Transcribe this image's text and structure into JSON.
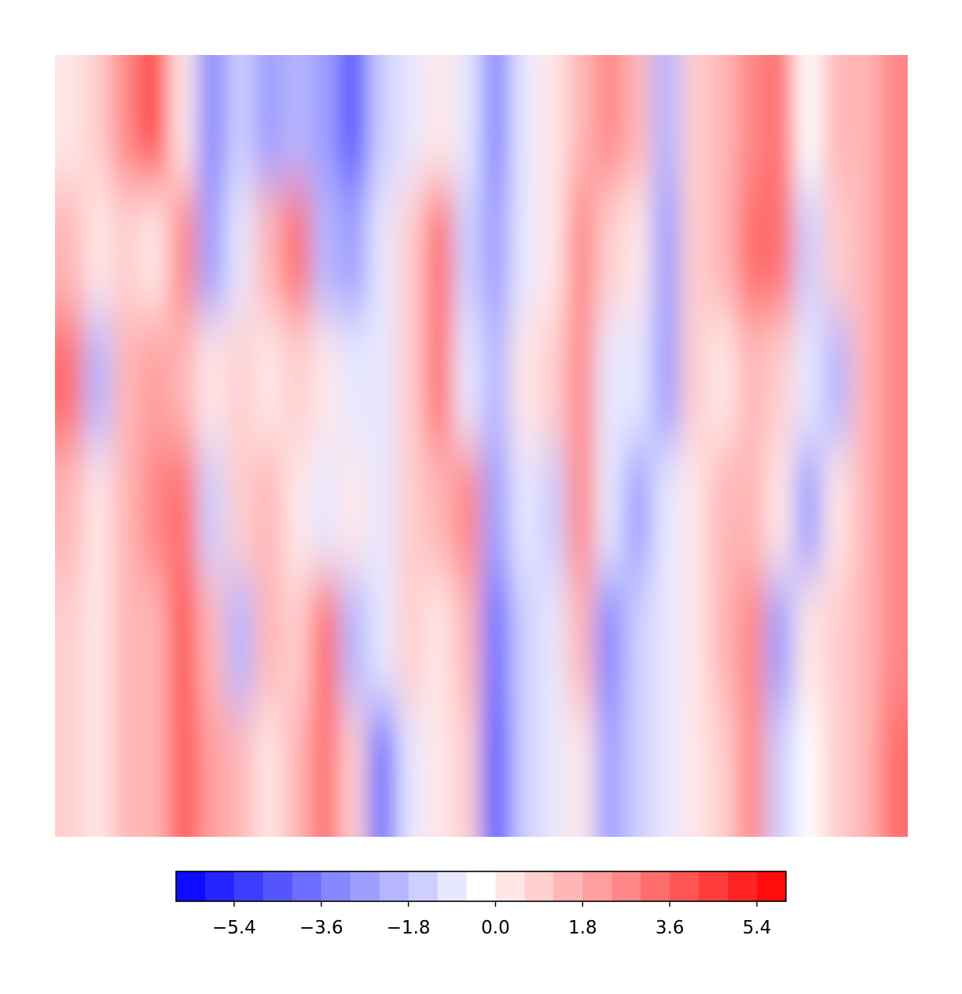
{
  "chart_data": {
    "type": "contour",
    "z": [
      [
        0.5,
        0.6,
        2.5,
        4.5,
        0.3,
        -3.5,
        -1.5,
        -2.5,
        -2,
        -3,
        -4.5,
        -1.5,
        -1.2,
        0,
        -1.2,
        -3.5,
        -0.8,
        0.2,
        1.2,
        2.5,
        1.5,
        -2,
        0.8,
        1.5,
        2.5,
        3,
        -0.3,
        1.2,
        1.5,
        2.5
      ],
      [
        1.5,
        0.3,
        1,
        0.2,
        2.5,
        -3,
        -1,
        1.2,
        3,
        -2,
        -3,
        -1,
        0.8,
        3,
        -1.5,
        -2.5,
        -1,
        0.2,
        2.5,
        1,
        0.2,
        -2.5,
        0.8,
        1.5,
        3,
        3.5,
        -1.5,
        1,
        1.5,
        2.5
      ],
      [
        3,
        -2,
        1.5,
        2,
        1.2,
        0,
        0.6,
        0,
        1,
        0,
        -1,
        -0.8,
        0.6,
        3,
        -1,
        -2,
        0,
        1,
        2.5,
        -1.2,
        -1,
        -2.5,
        0.8,
        0.2,
        1.2,
        0.8,
        -0.8,
        -2,
        1.5,
        2.5
      ],
      [
        1.5,
        0.2,
        1.5,
        2.5,
        3.5,
        -1.5,
        1,
        1.2,
        0,
        -0.8,
        0,
        -0.8,
        1,
        1.2,
        2.5,
        -2.5,
        -1.2,
        -1.5,
        2.5,
        -1,
        -2.5,
        -1.2,
        0.2,
        1.2,
        1.5,
        0,
        -2.5,
        0,
        1.5,
        2.5
      ],
      [
        1,
        0.2,
        1.5,
        1.5,
        4,
        1.5,
        -2,
        1.5,
        1,
        3,
        -2,
        -0.8,
        0.6,
        0,
        1.5,
        -4,
        -1.5,
        -1,
        1.2,
        -3.5,
        -1.5,
        -1,
        0,
        1.2,
        2.5,
        -2.5,
        0,
        1,
        1.2,
        2.5
      ],
      [
        1,
        0,
        1.2,
        1.5,
        4,
        2,
        1.5,
        0,
        1.5,
        3.5,
        1,
        -4,
        -0.8,
        0.2,
        0.6,
        -4.5,
        -1.5,
        -1,
        0.2,
        -2.5,
        -1.5,
        -1,
        0,
        1,
        2.5,
        -1.5,
        -0.5,
        1,
        1.5,
        3
      ]
    ],
    "levels": [
      -6.6,
      -6.0,
      -5.4,
      -4.8,
      -4.2,
      -3.6,
      -3.0,
      -2.4,
      -1.8,
      -1.2,
      -0.6,
      0.0,
      0.6,
      1.2,
      1.8,
      2.4,
      3.0,
      3.6,
      4.2,
      4.8,
      5.4,
      6.0
    ],
    "cmap": [
      "#0000ff",
      "#ffffff",
      "#ff0000"
    ],
    "colorbar": {
      "lim": [
        -6.6,
        6.0
      ],
      "ticks": [
        {
          "value": -5.4,
          "label": "−5.4"
        },
        {
          "value": -3.6,
          "label": "−3.6"
        },
        {
          "value": -1.8,
          "label": "−1.8"
        },
        {
          "value": 0,
          "label": "0.0"
        },
        1.8,
        3.6,
        5.4
      ]
    }
  }
}
